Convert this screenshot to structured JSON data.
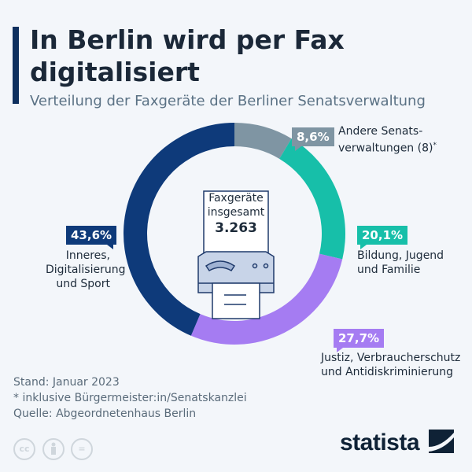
{
  "title_line1": "In Berlin wird per Fax",
  "title_line2": "digitalisiert",
  "subtitle": "Verteilung der Faxgeräte der Berliner Senatsverwaltung",
  "center": {
    "line1": "Faxgeräte",
    "line2": "insgesamt",
    "total": "3.263",
    "icon": "fax-machine-icon"
  },
  "chart_data": {
    "type": "pie",
    "donut": true,
    "categories": [
      "Andere Senatsverwaltungen (8)*",
      "Bildung, Jugend und Familie",
      "Justiz, Verbraucherschutz und Antidiskriminierung",
      "Inneres, Digitalisierung und Sport"
    ],
    "values": [
      8.6,
      20.1,
      27.7,
      43.6
    ],
    "value_labels": [
      "8,6%",
      "20,1%",
      "27,7%",
      "43,6%"
    ],
    "colors": [
      "#7f95a3",
      "#17bfa9",
      "#a57cf2",
      "#0e3a7a"
    ]
  },
  "labels": [
    {
      "pct": "8,6%",
      "l1": "Andere Senats-",
      "l2": "verwaltungen (8)",
      "sup": "*"
    },
    {
      "pct": "20,1%",
      "l1": "Bildung, Jugend",
      "l2": "und Familie"
    },
    {
      "pct": "27,7%",
      "l1": "Justiz, Verbraucherschutz",
      "l2": "und Antidiskriminierung"
    },
    {
      "pct": "43,6%",
      "l1": "Inneres,",
      "l2": "Digitalisierung",
      "l3": "und Sport"
    }
  ],
  "footer": {
    "stand": "Stand: Januar 2023",
    "note": "* inklusive Bürgermeister:in/Senatskanzlei",
    "source": "Quelle: Abgeordnetenhaus Berlin",
    "license_icons": [
      "cc-icon",
      "by-icon",
      "nd-icon"
    ],
    "cc": "cc",
    "eq": "="
  },
  "logo": "statista"
}
